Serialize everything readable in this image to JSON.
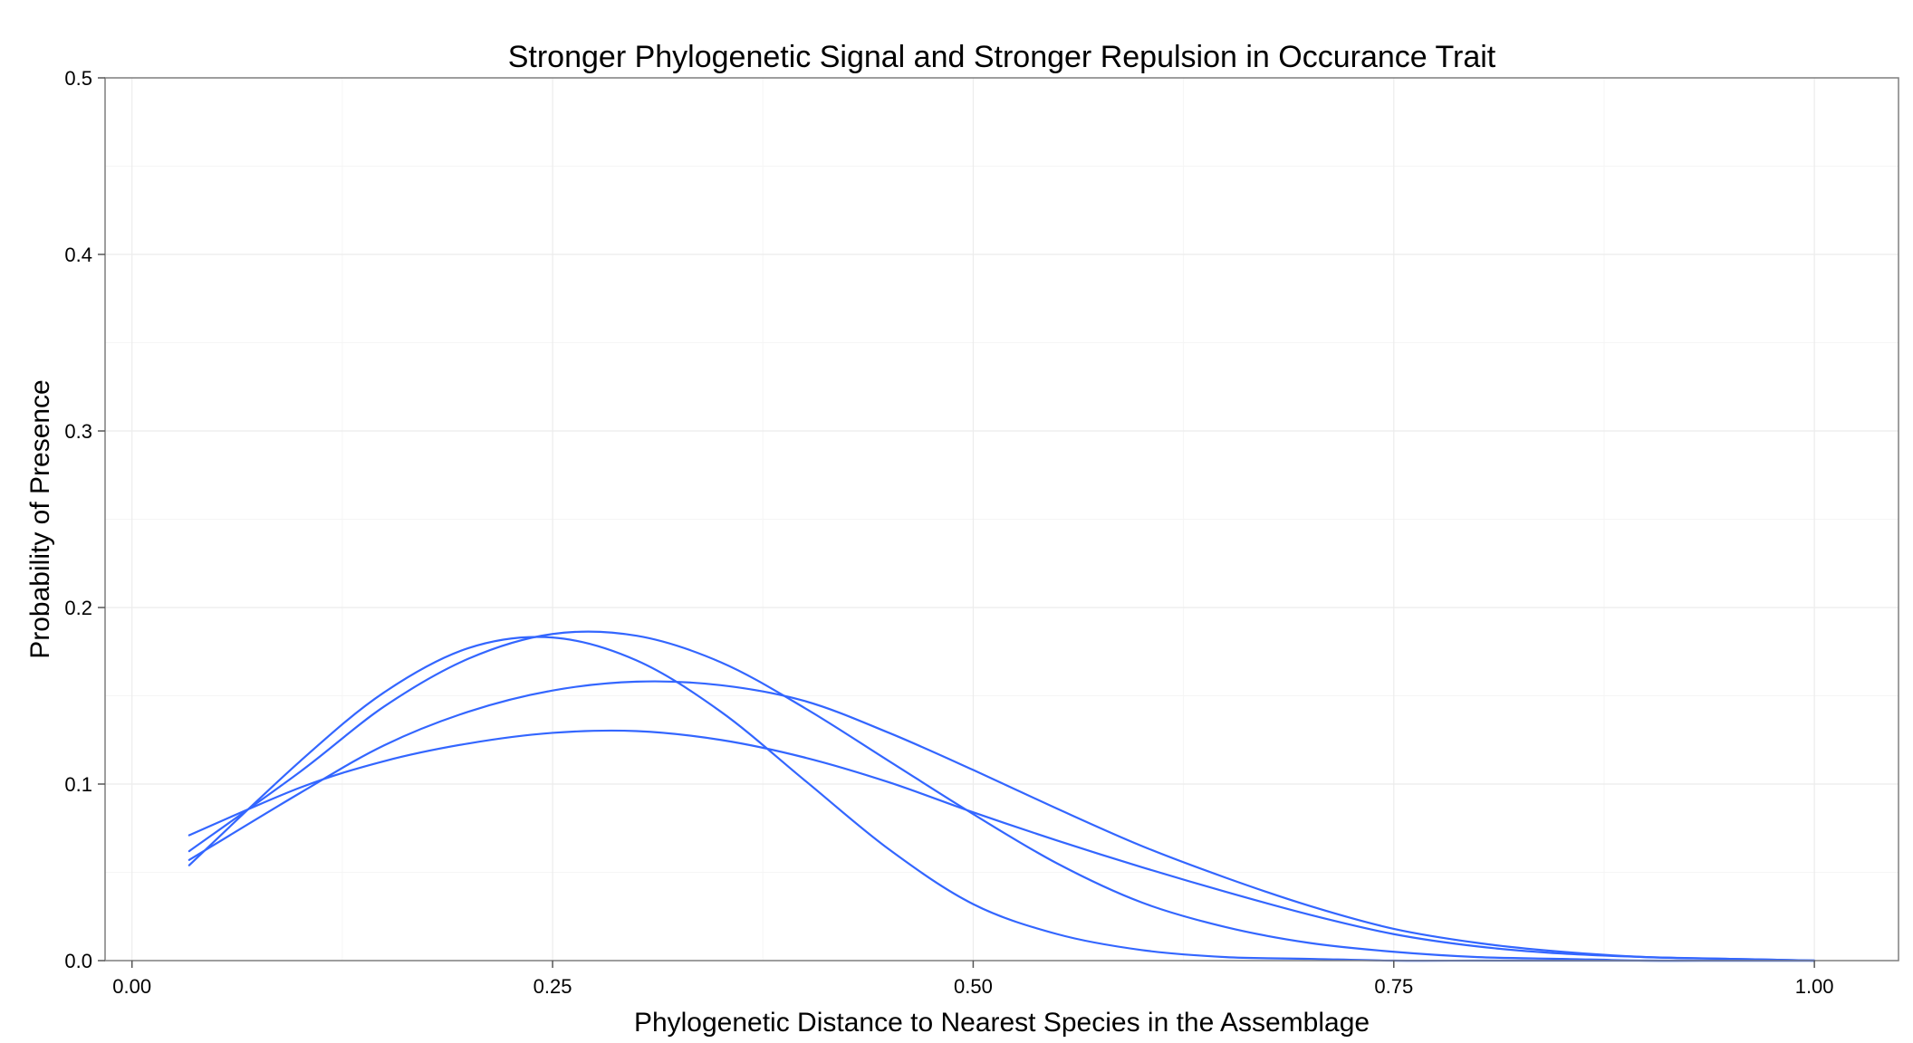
{
  "chart_data": {
    "type": "line",
    "title": "Stronger Phylogenetic Signal and Stronger Repulsion in Occurance Trait",
    "xlabel": "Phylogenetic Distance to Nearest Species in the Assemblage",
    "ylabel": "Probability of Presence",
    "xlim": [
      -0.016,
      1.05
    ],
    "ylim": [
      0,
      0.5
    ],
    "x_ticks": [
      0.0,
      0.25,
      0.5,
      0.75,
      1.0
    ],
    "x_tick_labels": [
      "0.00",
      "0.25",
      "0.50",
      "0.75",
      "1.00"
    ],
    "y_ticks": [
      0.0,
      0.1,
      0.2,
      0.3,
      0.4,
      0.5
    ],
    "y_tick_labels": [
      "0.0",
      "0.1",
      "0.2",
      "0.3",
      "0.4",
      "0.5"
    ],
    "grid": true,
    "legend": "none",
    "line_color": "#3366ff",
    "x": [
      0.034,
      0.1,
      0.15,
      0.2,
      0.25,
      0.3,
      0.35,
      0.4,
      0.45,
      0.5,
      0.55,
      0.6,
      0.65,
      0.7,
      0.75,
      0.8,
      0.85,
      0.9,
      0.95,
      1.0
    ],
    "series": [
      {
        "values": [
          0.054,
          0.113,
          0.152,
          0.177,
          0.183,
          0.17,
          0.141,
          0.102,
          0.063,
          0.032,
          0.015,
          0.006,
          0.002,
          0.001,
          0.0,
          0.0,
          0.0,
          0.0,
          0.0,
          0.0
        ]
      },
      {
        "values": [
          0.062,
          0.107,
          0.144,
          0.171,
          0.185,
          0.184,
          0.169,
          0.143,
          0.113,
          0.083,
          0.055,
          0.033,
          0.019,
          0.01,
          0.005,
          0.002,
          0.001,
          0.0,
          0.0,
          0.0
        ]
      },
      {
        "values": [
          0.057,
          0.095,
          0.122,
          0.141,
          0.153,
          0.158,
          0.156,
          0.147,
          0.129,
          0.108,
          0.086,
          0.065,
          0.047,
          0.031,
          0.018,
          0.01,
          0.005,
          0.002,
          0.001,
          0.0
        ]
      },
      {
        "values": [
          0.071,
          0.098,
          0.113,
          0.123,
          0.129,
          0.13,
          0.125,
          0.115,
          0.101,
          0.084,
          0.068,
          0.053,
          0.039,
          0.026,
          0.015,
          0.008,
          0.004,
          0.002,
          0.001,
          0.0
        ]
      }
    ]
  }
}
